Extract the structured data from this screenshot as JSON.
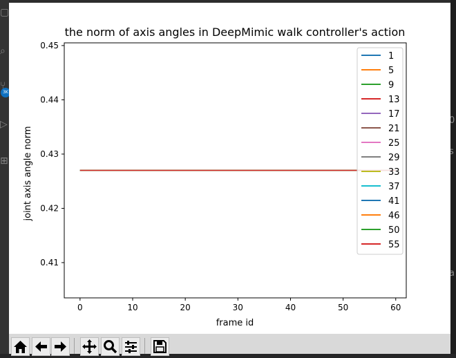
{
  "window": {
    "chart_title": "the norm of axis angles in DeepMimic walk controller's action"
  },
  "chart_data": {
    "type": "line",
    "title": "the norm of axis angles in DeepMimic walk controller's action",
    "xlabel": "frame id",
    "ylabel": "joint axis angle norm",
    "xlim": [
      -3,
      62
    ],
    "ylim": [
      0.4035,
      0.4505
    ],
    "xticks": [
      "0",
      "10",
      "20",
      "30",
      "40",
      "50",
      "60"
    ],
    "xtick_values": [
      0,
      10,
      20,
      30,
      40,
      50,
      60
    ],
    "yticks": [
      "0.41",
      "0.42",
      "0.43",
      "0.44",
      "0.45"
    ],
    "ytick_values": [
      0.41,
      0.42,
      0.43,
      0.44,
      0.45
    ],
    "x_range": [
      0,
      60
    ],
    "grid": false,
    "legend_position": "top-right",
    "series": [
      {
        "name": "1",
        "color": "#1f77b4",
        "y": 0.427
      },
      {
        "name": "5",
        "color": "#ff7f0e",
        "y": 0.427
      },
      {
        "name": "9",
        "color": "#2ca02c",
        "y": 0.427
      },
      {
        "name": "13",
        "color": "#d62728",
        "y": 0.427
      },
      {
        "name": "17",
        "color": "#9467bd",
        "y": 0.427
      },
      {
        "name": "21",
        "color": "#8c564b",
        "y": 0.427
      },
      {
        "name": "25",
        "color": "#e377c2",
        "y": 0.427
      },
      {
        "name": "29",
        "color": "#7f7f7f",
        "y": 0.427
      },
      {
        "name": "33",
        "color": "#bcbd22",
        "y": 0.427
      },
      {
        "name": "37",
        "color": "#17becf",
        "y": 0.427
      },
      {
        "name": "41",
        "color": "#1f77b4",
        "y": 0.427
      },
      {
        "name": "46",
        "color": "#ff7f0e",
        "y": 0.427
      },
      {
        "name": "50",
        "color": "#2ca02c",
        "y": 0.427
      },
      {
        "name": "55",
        "color": "#d62728",
        "y": 0.427
      }
    ]
  },
  "toolbar": {
    "buttons": [
      {
        "name": "home-button",
        "icon": "home-icon"
      },
      {
        "name": "back-button",
        "icon": "arrow-left-icon"
      },
      {
        "name": "forward-button",
        "icon": "arrow-right-icon"
      },
      {
        "name": "pan-button",
        "icon": "move-icon"
      },
      {
        "name": "zoom-button",
        "icon": "magnifier-icon"
      },
      {
        "name": "configure-subplots-button",
        "icon": "sliders-icon"
      },
      {
        "name": "save-button",
        "icon": "floppy-icon"
      }
    ]
  },
  "background": {
    "badge_text": "3K",
    "right_edge_chars": [
      "0",
      "s",
      "a"
    ]
  }
}
